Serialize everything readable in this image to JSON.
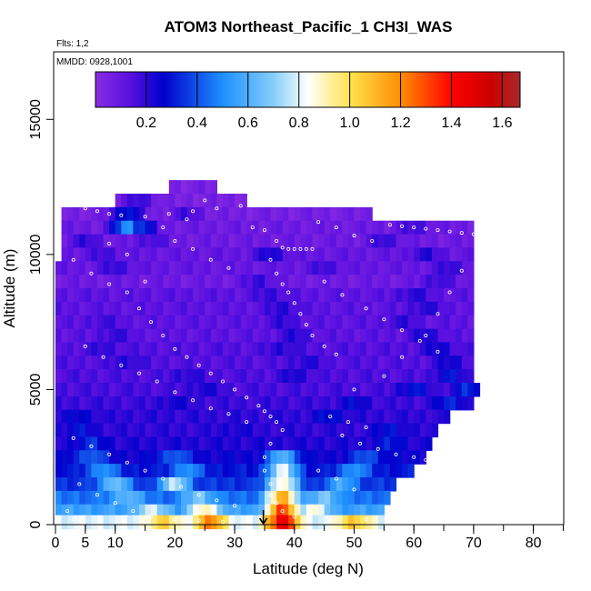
{
  "chart_data": {
    "type": "heatmap",
    "title": "ATOM3 Northeast_Pacific_1 CH3I_WAS",
    "flights_label": "Flts: 1,2",
    "dates_label": "MMDD: 0928,1001",
    "xlabel": "Latitude (deg N)",
    "ylabel": "Altitude (m)",
    "xlim": [
      0,
      85
    ],
    "ylim": [
      0,
      17500
    ],
    "x_ticks": [
      0,
      5,
      10,
      20,
      30,
      40,
      50,
      60,
      70,
      80
    ],
    "y_ticks": [
      0,
      5000,
      10000,
      15000
    ],
    "colorbar": {
      "range": [
        0.0,
        1.67
      ],
      "ticks": [
        0.2,
        0.4,
        0.6,
        0.8,
        1.0,
        1.2,
        1.4,
        1.6
      ],
      "tick_labels": [
        "0.2",
        "0.4",
        "0.6",
        "0.8",
        "1.0",
        "1.2",
        "1.4",
        "1.6"
      ],
      "palette": [
        "#8a2be2",
        "#0000cd",
        "#1e90ff",
        "#87cefa",
        "#ffffff",
        "#ffe34d",
        "#ff8c00",
        "#ff0000",
        "#a52a2a"
      ]
    },
    "marker_latitude": 34.8,
    "altitude_bins": [
      {
        "alt": 12500,
        "lat_range": [
          19,
          27
        ],
        "base": 0.05,
        "hot": [],
        "cold": []
      },
      {
        "alt": 12000,
        "lat_range": [
          10,
          32
        ],
        "base": 0.05,
        "hot": [
          [
            14,
            0.2
          ]
        ],
        "cold": []
      },
      {
        "alt": 11500,
        "lat_range": [
          1,
          53
        ],
        "base": 0.06,
        "hot": [
          [
            12,
            0.35
          ],
          [
            22,
            0.18
          ]
        ],
        "cold": []
      },
      {
        "alt": 11000,
        "lat_range": [
          1,
          70
        ],
        "base": 0.08,
        "hot": [
          [
            12,
            0.55
          ],
          [
            14,
            0.4
          ],
          [
            60,
            0.18
          ]
        ],
        "cold": []
      },
      {
        "alt": 10500,
        "lat_range": [
          1,
          70
        ],
        "base": 0.08,
        "hot": [
          [
            5,
            0.2
          ],
          [
            16,
            0.18
          ],
          [
            55,
            0.2
          ]
        ],
        "cold": []
      },
      {
        "alt": 10000,
        "lat_range": [
          1,
          70
        ],
        "base": 0.1,
        "hot": [
          [
            8,
            0.18
          ],
          [
            36,
            0.25
          ],
          [
            62,
            0.22
          ]
        ],
        "cold": []
      },
      {
        "alt": 9500,
        "lat_range": [
          0,
          70
        ],
        "base": 0.1,
        "hot": [
          [
            10,
            0.2
          ],
          [
            45,
            0.18
          ],
          [
            66,
            0.2
          ]
        ],
        "cold": []
      },
      {
        "alt": 9000,
        "lat_range": [
          0,
          70
        ],
        "base": 0.08,
        "hot": [
          [
            34,
            0.2
          ],
          [
            64,
            0.2
          ]
        ],
        "cold": [
          [
            16,
            0.04
          ]
        ]
      },
      {
        "alt": 8500,
        "lat_range": [
          0,
          70
        ],
        "base": 0.12,
        "hot": [
          [
            36,
            0.2
          ],
          [
            60,
            0.22
          ]
        ],
        "cold": []
      },
      {
        "alt": 8000,
        "lat_range": [
          0,
          70
        ],
        "base": 0.12,
        "hot": [
          [
            38,
            0.22
          ],
          [
            62,
            0.22
          ]
        ],
        "cold": []
      },
      {
        "alt": 7500,
        "lat_range": [
          0,
          70
        ],
        "base": 0.12,
        "hot": [
          [
            8,
            0.18
          ],
          [
            38,
            0.2
          ],
          [
            58,
            0.2
          ]
        ],
        "cold": []
      },
      {
        "alt": 7000,
        "lat_range": [
          0,
          70
        ],
        "base": 0.12,
        "hot": [
          [
            10,
            0.2
          ],
          [
            40,
            0.22
          ],
          [
            62,
            0.24
          ]
        ],
        "cold": []
      },
      {
        "alt": 6500,
        "lat_range": [
          0,
          70
        ],
        "base": 0.14,
        "hot": [
          [
            8,
            0.2
          ],
          [
            38,
            0.22
          ],
          [
            64,
            0.26
          ]
        ],
        "cold": []
      },
      {
        "alt": 6000,
        "lat_range": [
          0,
          70
        ],
        "base": 0.14,
        "hot": [
          [
            12,
            0.22
          ],
          [
            42,
            0.22
          ],
          [
            66,
            0.26
          ]
        ],
        "cold": []
      },
      {
        "alt": 5500,
        "lat_range": [
          0,
          70
        ],
        "base": 0.15,
        "hot": [
          [
            22,
            0.22
          ],
          [
            40,
            0.24
          ],
          [
            66,
            0.3
          ]
        ],
        "cold": []
      },
      {
        "alt": 5000,
        "lat_range": [
          0,
          71
        ],
        "base": 0.16,
        "hot": [
          [
            25,
            0.24
          ],
          [
            60,
            0.32
          ],
          [
            69,
            0.35
          ]
        ],
        "cold": []
      },
      {
        "alt": 4500,
        "lat_range": [
          0,
          70
        ],
        "base": 0.18,
        "hot": [
          [
            20,
            0.25
          ],
          [
            50,
            0.28
          ],
          [
            66,
            0.34
          ]
        ],
        "cold": []
      },
      {
        "alt": 4000,
        "lat_range": [
          0,
          66
        ],
        "base": 0.2,
        "hot": [
          [
            4,
            0.28
          ],
          [
            46,
            0.3
          ]
        ],
        "cold": []
      },
      {
        "alt": 3500,
        "lat_range": [
          0,
          64
        ],
        "base": 0.2,
        "hot": [
          [
            4,
            0.3
          ],
          [
            30,
            0.24
          ],
          [
            56,
            0.3
          ]
        ],
        "cold": []
      },
      {
        "alt": 3000,
        "lat_range": [
          0,
          63
        ],
        "base": 0.22,
        "hot": [
          [
            6,
            0.35
          ],
          [
            56,
            0.32
          ]
        ],
        "cold": []
      },
      {
        "alt": 2500,
        "lat_range": [
          0,
          62
        ],
        "base": 0.25,
        "hot": [
          [
            6,
            0.45
          ],
          [
            20,
            0.45
          ],
          [
            38,
            0.65
          ],
          [
            52,
            0.42
          ]
        ],
        "cold": []
      },
      {
        "alt": 2000,
        "lat_range": [
          0,
          60
        ],
        "base": 0.3,
        "hot": [
          [
            8,
            0.55
          ],
          [
            22,
            0.55
          ],
          [
            38,
            0.85
          ],
          [
            50,
            0.55
          ]
        ],
        "cold": []
      },
      {
        "alt": 1500,
        "lat_range": [
          0,
          57
        ],
        "base": 0.35,
        "hot": [
          [
            10,
            0.7
          ],
          [
            20,
            0.8
          ],
          [
            38,
            0.95
          ],
          [
            48,
            0.6
          ]
        ],
        "cold": []
      },
      {
        "alt": 1000,
        "lat_range": [
          0,
          56
        ],
        "base": 0.45,
        "hot": [
          [
            12,
            0.65
          ],
          [
            24,
            0.7
          ],
          [
            38,
            1.2
          ],
          [
            45,
            0.7
          ]
        ],
        "cold": []
      },
      {
        "alt": 500,
        "lat_range": [
          0,
          55
        ],
        "base": 0.55,
        "hot": [
          [
            16,
            0.8
          ],
          [
            25,
            0.95
          ],
          [
            38,
            1.4
          ],
          [
            43,
            0.9
          ]
        ],
        "cold": []
      },
      {
        "alt": 100,
        "lat_range": [
          0,
          55
        ],
        "base": 0.8,
        "hot": [
          [
            18,
            1.05
          ],
          [
            26,
            1.25
          ],
          [
            38,
            1.55
          ],
          [
            50,
            1.1
          ]
        ],
        "cold": []
      }
    ],
    "samples": [
      [
        1,
        11900
      ],
      [
        3,
        11850
      ],
      [
        5,
        11700
      ],
      [
        7,
        11600
      ],
      [
        9,
        11500
      ],
      [
        11,
        11450
      ],
      [
        15,
        11400
      ],
      [
        19,
        11500
      ],
      [
        23,
        11600
      ],
      [
        27,
        11700
      ],
      [
        31,
        11800
      ],
      [
        28,
        12450
      ],
      [
        30,
        12400
      ],
      [
        32,
        12380
      ],
      [
        34,
        12360
      ],
      [
        36,
        12340
      ],
      [
        38,
        12320
      ],
      [
        40,
        12300
      ],
      [
        42,
        12280
      ],
      [
        44,
        12260
      ],
      [
        46,
        12240
      ],
      [
        56,
        11100
      ],
      [
        58,
        11050
      ],
      [
        60,
        11000
      ],
      [
        62,
        10950
      ],
      [
        64,
        10900
      ],
      [
        66,
        10850
      ],
      [
        68,
        10800
      ],
      [
        70,
        10750
      ],
      [
        33,
        11000
      ],
      [
        35,
        10900
      ],
      [
        37,
        10500
      ],
      [
        38,
        10250
      ],
      [
        39,
        10200
      ],
      [
        40,
        10200
      ],
      [
        41,
        10200
      ],
      [
        42,
        10200
      ],
      [
        43,
        10200
      ],
      [
        36,
        9800
      ],
      [
        37,
        9300
      ],
      [
        38,
        8900
      ],
      [
        39,
        8600
      ],
      [
        40,
        8200
      ],
      [
        41,
        7800
      ],
      [
        42,
        7400
      ],
      [
        43,
        7000
      ],
      [
        45,
        6600
      ],
      [
        47,
        6300
      ],
      [
        3,
        9800
      ],
      [
        6,
        9300
      ],
      [
        9,
        8900
      ],
      [
        12,
        8600
      ],
      [
        14,
        8000
      ],
      [
        16,
        7500
      ],
      [
        18,
        7000
      ],
      [
        20,
        6500
      ],
      [
        22,
        6200
      ],
      [
        24,
        5900
      ],
      [
        26,
        5600
      ],
      [
        28,
        5300
      ],
      [
        30,
        5000
      ],
      [
        32,
        4700
      ],
      [
        34,
        4400
      ],
      [
        35,
        4200
      ],
      [
        36,
        4000
      ],
      [
        37,
        3800
      ],
      [
        38,
        3500
      ],
      [
        36,
        3000
      ],
      [
        35,
        2500
      ],
      [
        35,
        2000
      ],
      [
        36,
        1500
      ],
      [
        36,
        1100
      ],
      [
        37,
        800
      ],
      [
        38,
        500
      ],
      [
        40,
        300
      ],
      [
        42,
        200
      ],
      [
        46,
        150
      ],
      [
        52,
        200
      ],
      [
        5,
        6600
      ],
      [
        8,
        6200
      ],
      [
        11,
        5900
      ],
      [
        14,
        5600
      ],
      [
        17,
        5300
      ],
      [
        20,
        4900
      ],
      [
        23,
        4600
      ],
      [
        26,
        4300
      ],
      [
        29,
        4100
      ],
      [
        32,
        3800
      ],
      [
        3,
        3200
      ],
      [
        6,
        2900
      ],
      [
        9,
        2600
      ],
      [
        12,
        2300
      ],
      [
        15,
        2000
      ],
      [
        18,
        1700
      ],
      [
        21,
        1400
      ],
      [
        24,
        1100
      ],
      [
        27,
        900
      ],
      [
        30,
        700
      ],
      [
        48,
        3300
      ],
      [
        51,
        3000
      ],
      [
        54,
        2800
      ],
      [
        57,
        2600
      ],
      [
        60,
        2500
      ],
      [
        62,
        2400
      ],
      [
        50,
        5000
      ],
      [
        55,
        5500
      ],
      [
        58,
        6200
      ],
      [
        62,
        7000
      ],
      [
        64,
        7800
      ],
      [
        66,
        8600
      ],
      [
        68,
        9400
      ],
      [
        45,
        9000
      ],
      [
        48,
        8500
      ],
      [
        52,
        8000
      ],
      [
        55,
        7600
      ],
      [
        58,
        7200
      ],
      [
        61,
        6800
      ],
      [
        64,
        6400
      ],
      [
        20,
        10500
      ],
      [
        23,
        10200
      ],
      [
        26,
        9800
      ],
      [
        29,
        9500
      ],
      [
        15,
        9000
      ],
      [
        12,
        10000
      ],
      [
        9,
        10400
      ],
      [
        18,
        11000
      ],
      [
        22,
        11300
      ],
      [
        25,
        12000
      ],
      [
        44,
        11200
      ],
      [
        47,
        11000
      ],
      [
        50,
        10700
      ],
      [
        53,
        10500
      ],
      [
        46,
        4000
      ],
      [
        49,
        3800
      ],
      [
        52,
        3600
      ],
      [
        44,
        2000
      ],
      [
        47,
        1700
      ],
      [
        50,
        1300
      ],
      [
        4,
        1500
      ],
      [
        7,
        1100
      ],
      [
        10,
        800
      ],
      [
        13,
        500
      ],
      [
        16,
        300
      ],
      [
        20,
        200
      ],
      [
        24,
        150
      ],
      [
        28,
        100
      ],
      [
        32,
        120
      ],
      [
        2,
        500
      ],
      [
        3,
        200
      ]
    ]
  }
}
